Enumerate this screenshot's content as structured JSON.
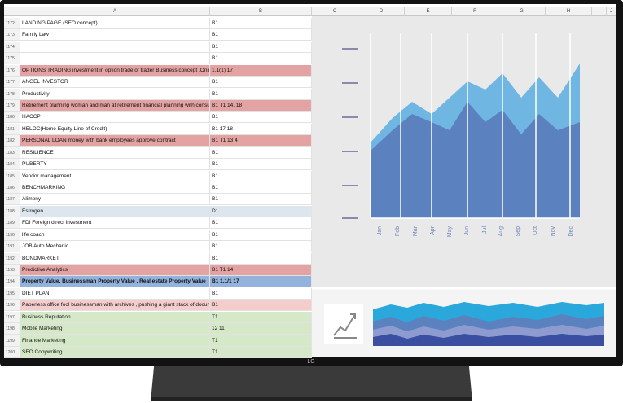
{
  "spreadsheet": {
    "columns": [
      "A",
      "B",
      "C",
      "D",
      "E",
      "F",
      "G",
      "H",
      "I",
      "J"
    ],
    "rows": [
      {
        "row": 1172,
        "a": "LANDING PAGE (SEO concept)",
        "b": "B1"
      },
      {
        "row": 1173,
        "a": "Family Law",
        "b": "B1"
      },
      {
        "row": 1174,
        "b": "B1"
      },
      {
        "row": 1175,
        "b": "B1"
      },
      {
        "row": 1176,
        "a": "OPTIONS TRADING investment in option trade of trader Business concept ,Online Sto",
        "b": "1.1(1) 17",
        "fill": "#e4a3a3"
      },
      {
        "row": 1177,
        "a": "ANGEL INVESTOR",
        "b": "B1"
      },
      {
        "row": 1178,
        "a": "Productivity",
        "b": "B1"
      },
      {
        "row": 1179,
        "a": "Retirement planning woman and man at retirement financial planning with consultar",
        "b": "B1 T1 14. 18",
        "fill": "#e4a3a3"
      },
      {
        "row": 1180,
        "a": "HACCP",
        "b": "B1"
      },
      {
        "row": 1181,
        "a": "HELOC(Home Equity Line of Credit)",
        "b": "B1 17 18"
      },
      {
        "row": 1182,
        "a": "PERSONAL LOAN money with bank employees approve contract",
        "b": "B1 T1 13 4",
        "fill": "#e4a3a3"
      },
      {
        "row": 1183,
        "a": "RESILIENCE",
        "b": "B1"
      },
      {
        "row": 1184,
        "a": "PUBERTY",
        "b": "B1"
      },
      {
        "row": 1185,
        "a": "Vendor management",
        "b": "B1"
      },
      {
        "row": 1186,
        "a": "BENCHMARKING",
        "b": "B1"
      },
      {
        "row": 1187,
        "a": "Alimony",
        "b": "B1"
      },
      {
        "row": 1188,
        "a": "Estrogen",
        "b": "D1",
        "fill": "#dde6ef"
      },
      {
        "row": 1189,
        "a": "FDI Foreign direct investment",
        "b": "B1"
      },
      {
        "row": 1190,
        "a": "life coach",
        "b": "B1"
      },
      {
        "row": 1191,
        "a": "JOB Auto Mechanic",
        "b": "B1"
      },
      {
        "row": 1192,
        "a": "BONDMARKET",
        "b": "B1"
      },
      {
        "row": 1193,
        "a": "Predictive Analytics",
        "b": "B1 T1 14",
        "fill": "#e4a3a3"
      },
      {
        "row": 1194,
        "a": "Property Value, Businessman Property Value , Real estate Property Value , How Mu",
        "b": "B1 1.1/1 17",
        "fill": "#93b3dd",
        "bold": true
      },
      {
        "row": 1195,
        "a": "DIET PLAN",
        "b": "B1"
      },
      {
        "row": 1196,
        "a": "Paperless office fool businessman with archives , pushing a giant stack of documents",
        "b": "B1",
        "fill": "#f3cccc"
      },
      {
        "row": 1197,
        "a": "Business Reputation",
        "b": "T1",
        "fill": "#d5e9c9"
      },
      {
        "row": 1198,
        "a": "Mobile Marketing",
        "b": "12 11",
        "fill": "#d5e9c9"
      },
      {
        "row": 1199,
        "a": "Finance Marketing",
        "b": "T1",
        "fill": "#d5e9c9"
      },
      {
        "row": 1200,
        "a": "SEO Copywriting",
        "b": "T1",
        "fill": "#d5e9c9"
      }
    ]
  },
  "chart": {
    "months": [
      "Jan",
      "Feb",
      "Mar",
      "Apr",
      "May",
      "Jun",
      "Jul",
      "Aug",
      "Sep",
      "Oct",
      "Nov",
      "Dec"
    ]
  },
  "brand": "LG"
}
